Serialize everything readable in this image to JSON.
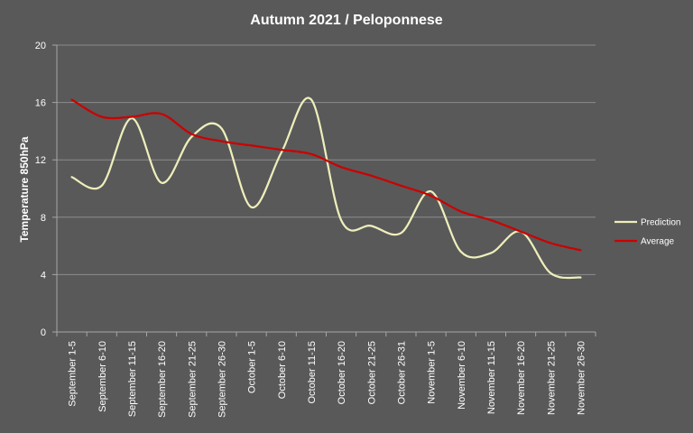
{
  "chart_data": {
    "type": "line",
    "title": "Autumn 2021 / Peloponnese",
    "xlabel": "",
    "ylabel": "Temperature 850hPa",
    "ylim": [
      0,
      20
    ],
    "yticks": [
      0,
      4,
      8,
      12,
      16,
      20
    ],
    "grid": true,
    "legend_position": "right",
    "categories": [
      "September 1-5",
      "September 6-10",
      "September 11-15",
      "September 16-20",
      "September 21-25",
      "September 26-30",
      "October 1-5",
      "October 6-10",
      "October 11-15",
      "October 16-20",
      "October 21-25",
      "October 26-31",
      "November 1-5",
      "November 6-10",
      "November 11-15",
      "November 16-20",
      "November 21-25",
      "November 26-30"
    ],
    "series": [
      {
        "name": "Prediction",
        "color": "#eeeebb",
        "values": [
          10.8,
          10.2,
          14.9,
          10.4,
          13.6,
          14.2,
          8.7,
          12.5,
          16.2,
          7.8,
          7.4,
          6.9,
          9.8,
          5.6,
          5.5,
          7.0,
          4.1,
          3.8
        ]
      },
      {
        "name": "Average",
        "color": "#cc0000",
        "values": [
          16.2,
          15.0,
          15.0,
          15.2,
          13.8,
          13.3,
          13.0,
          12.7,
          12.4,
          11.5,
          10.9,
          10.2,
          9.5,
          8.4,
          7.8,
          7.0,
          6.2,
          5.7
        ]
      }
    ]
  }
}
